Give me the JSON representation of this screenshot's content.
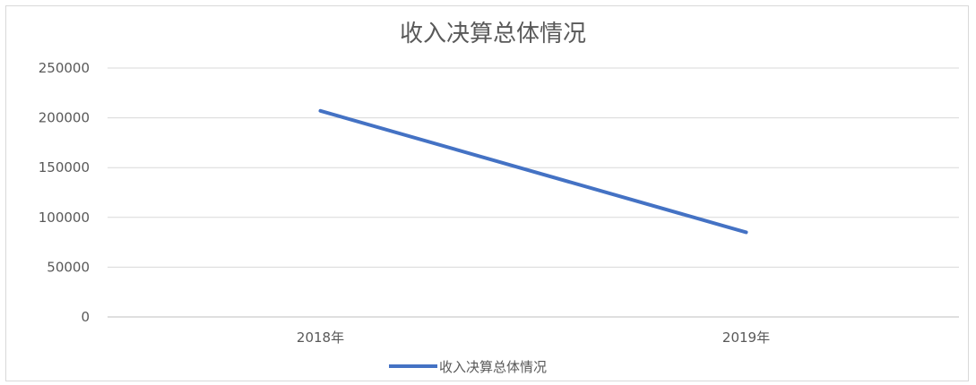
{
  "chart_data": {
    "type": "line",
    "title": "收入决算总体情况",
    "categories": [
      "2018年",
      "2019年"
    ],
    "series": [
      {
        "name": "收入决算总体情况",
        "values": [
          207000,
          85000
        ],
        "color": "#4472c4"
      }
    ],
    "ylim": [
      0,
      250000
    ],
    "yticks": [
      0,
      50000,
      100000,
      150000,
      200000,
      250000
    ],
    "grid": true,
    "legend": "bottom",
    "xlabel": "",
    "ylabel": ""
  }
}
